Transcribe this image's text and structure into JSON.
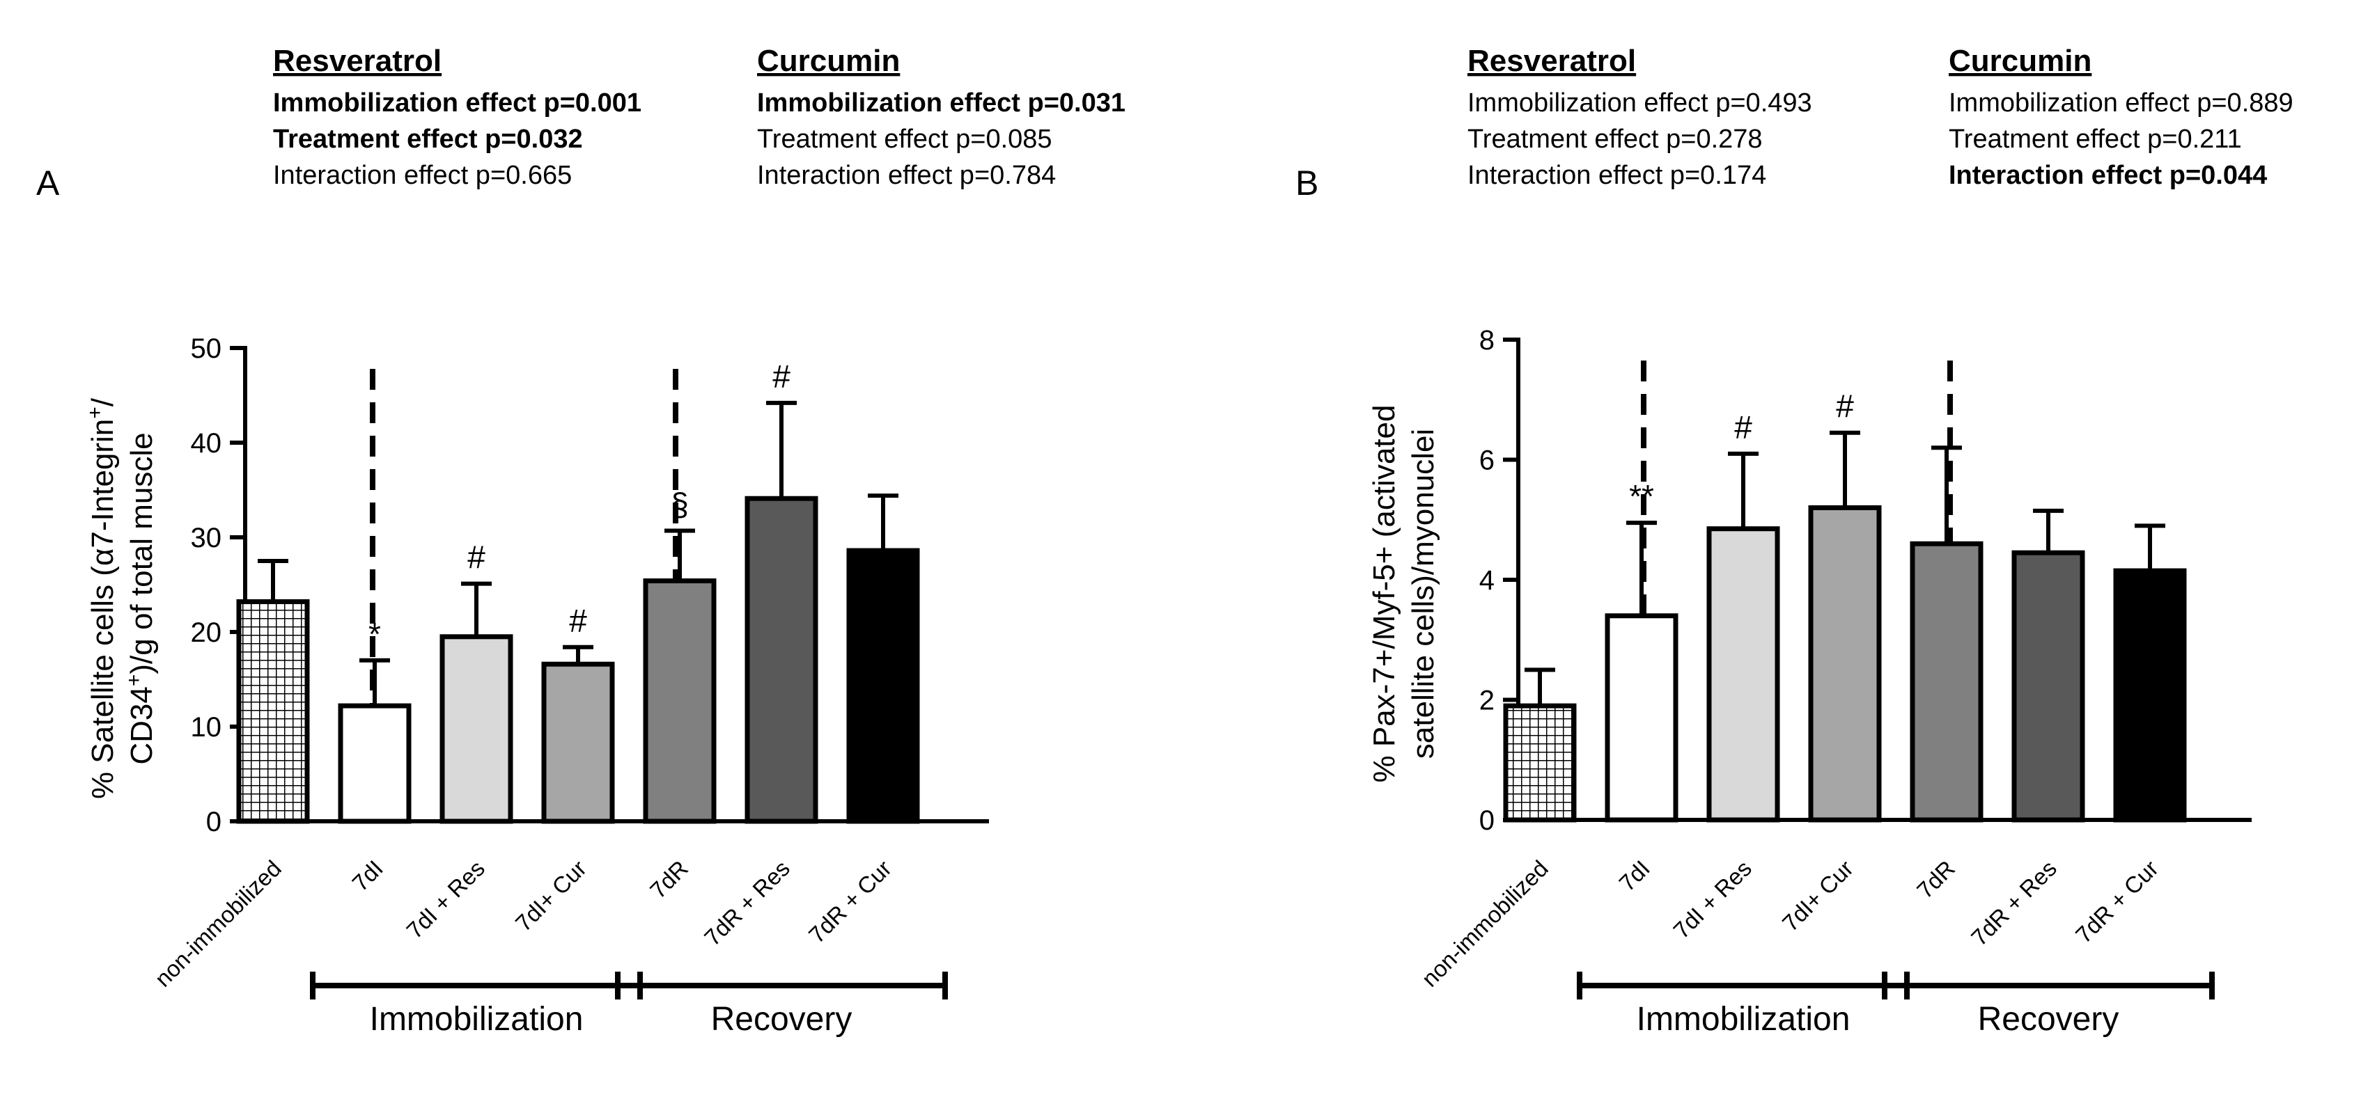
{
  "figure_panels": [
    {
      "letter": "A",
      "stats": [
        {
          "heading": "Resveratrol",
          "lines": [
            {
              "text": "Immobilization effect p=0.001",
              "significant": true
            },
            {
              "text": "Treatment effect p=0.032",
              "significant": true
            },
            {
              "text": "Interaction effect p=0.665",
              "significant": false
            }
          ]
        },
        {
          "heading": "Curcumin",
          "lines": [
            {
              "text": "Immobilization effect p=0.031",
              "significant": true
            },
            {
              "text": "Treatment effect p=0.085",
              "significant": false
            },
            {
              "text": "Interaction effect p=0.784",
              "significant": false
            }
          ]
        }
      ]
    },
    {
      "letter": "B",
      "stats": [
        {
          "heading": "Resveratrol",
          "lines": [
            {
              "text": "Immobilization effect p=0.493",
              "significant": false
            },
            {
              "text": "Treatment effect p=0.278",
              "significant": false
            },
            {
              "text": "Interaction effect p=0.174",
              "significant": false
            }
          ]
        },
        {
          "heading": "Curcumin",
          "lines": [
            {
              "text": "Immobilization effect p=0.889",
              "significant": false
            },
            {
              "text": "Treatment effect p=0.211",
              "significant": false
            },
            {
              "text": "Interaction effect p=0.044",
              "significant": true
            }
          ]
        }
      ]
    }
  ],
  "chart_data": [
    {
      "type": "bar",
      "panel": "A",
      "ylabel_lines": [
        [
          [
            "% Satellite cells (α7-Integrin",
            false
          ],
          [
            "+",
            true
          ],
          [
            "/",
            false
          ]
        ],
        [
          [
            "CD34",
            false
          ],
          [
            "+",
            true
          ],
          [
            ")/g of total muscle",
            false
          ]
        ]
      ],
      "ylim": [
        0,
        50
      ],
      "yticks": [
        0,
        10,
        20,
        30,
        40,
        50
      ],
      "categories": [
        "non-immobilized",
        "7dI",
        "7dI + Res",
        "7dI+ Cur",
        "7dR",
        "7dR + Res",
        "7dR + Cur"
      ],
      "values": [
        23.2,
        12.2,
        19.5,
        16.6,
        25.4,
        34.1,
        28.6
      ],
      "errors": [
        4.3,
        4.8,
        5.6,
        1.8,
        5.3,
        10.1,
        5.8
      ],
      "annotations": [
        "",
        "*",
        "#",
        "#",
        "§",
        "#",
        ""
      ],
      "fills": [
        "hatch",
        "#ffffff",
        "#d9d9d9",
        "#a6a6a6",
        "#808080",
        "#595959",
        "#000000"
      ],
      "groups": [
        {
          "label": "Immobilization",
          "from": 1,
          "to": 3
        },
        {
          "label": "Recovery",
          "from": 4,
          "to": 6
        }
      ],
      "dashed_separators_before": [
        1,
        4
      ],
      "grid": false
    },
    {
      "type": "bar",
      "panel": "B",
      "ylabel_lines": [
        [
          [
            "% Pax-7+/Myf-5+ (activated",
            false
          ]
        ],
        [
          [
            "satellite cells)/myonuclei",
            false
          ]
        ]
      ],
      "ylim": [
        0,
        8
      ],
      "yticks": [
        0,
        2,
        4,
        6,
        8
      ],
      "categories": [
        "non-immobilized",
        "7dI",
        "7dI + Res",
        "7dI+ Cur",
        "7dR",
        "7dR + Res",
        "7dR + Cur"
      ],
      "values": [
        1.9,
        3.4,
        4.85,
        5.2,
        4.6,
        4.45,
        4.15
      ],
      "errors": [
        0.6,
        1.55,
        1.25,
        1.25,
        1.6,
        0.7,
        0.75
      ],
      "annotations": [
        "",
        "**",
        "#",
        "#",
        "",
        "",
        ""
      ],
      "fills": [
        "hatch",
        "#ffffff",
        "#d9d9d9",
        "#a6a6a6",
        "#808080",
        "#595959",
        "#000000"
      ],
      "groups": [
        {
          "label": "Immobilization",
          "from": 1,
          "to": 3
        },
        {
          "label": "Recovery",
          "from": 4,
          "to": 6
        }
      ],
      "dashed_separators_before": [
        1,
        4
      ],
      "grid": false
    }
  ]
}
